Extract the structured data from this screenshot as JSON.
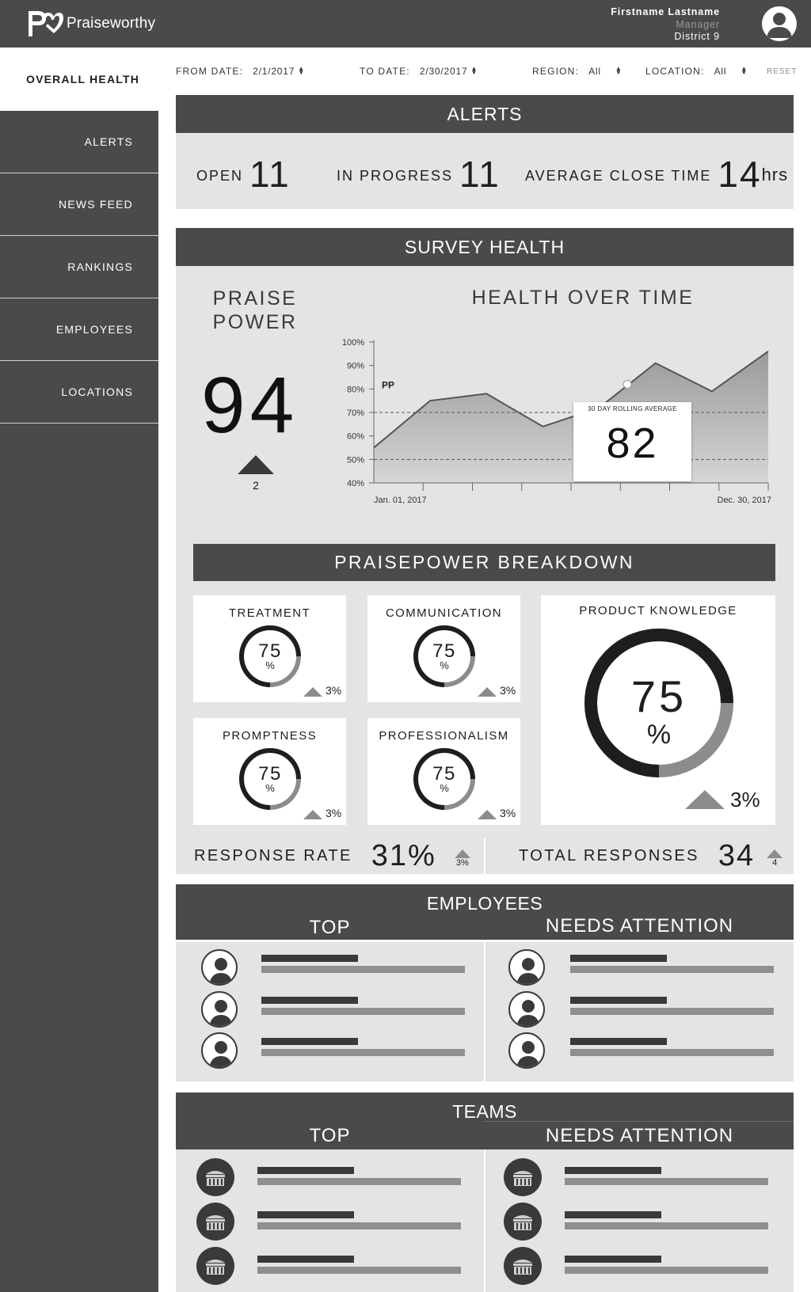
{
  "brand": {
    "name": "Praiseworthy",
    "logo_letters": "PR"
  },
  "user": {
    "name": "Firstname Lastname",
    "role": "Manager",
    "district": "District 9"
  },
  "sidebar": {
    "active": "OVERALL HEALTH",
    "items": [
      {
        "label": "ALERTS"
      },
      {
        "label": "NEWS FEED"
      },
      {
        "label": "RANKINGS"
      },
      {
        "label": "EMPLOYEES"
      },
      {
        "label": "LOCATIONS"
      }
    ]
  },
  "filters": {
    "from_label": "FROM DATE:",
    "from_value": "2/1/2017",
    "to_label": "TO DATE:",
    "to_value": "2/30/2017",
    "region_label": "REGION:",
    "region_value": "All",
    "location_label": "LOCATION:",
    "location_value": "All",
    "reset_label": "RESET"
  },
  "alerts": {
    "title": "ALERTS",
    "open_label": "OPEN",
    "open_value": "11",
    "progress_label": "IN PROGRESS",
    "progress_value": "11",
    "close_label": "AVERAGE CLOSE TIME",
    "close_value": "14",
    "close_unit": "hrs"
  },
  "survey": {
    "title": "SURVEY HEALTH",
    "praise_power_title_1": "PRAISE",
    "praise_power_title_2": "POWER",
    "praise_power_value": "94",
    "praise_power_delta": "2",
    "chart_title": "HEALTH OVER TIME",
    "tooltip_label": "30 DAY ROLLING AVERAGE",
    "tooltip_value": "82"
  },
  "chart_data": {
    "type": "area",
    "title": "HEALTH OVER TIME",
    "series": [
      {
        "name": "PP",
        "values": [
          55,
          75,
          78,
          64,
          72,
          91,
          79,
          96
        ]
      }
    ],
    "x_start_label": "Jan. 01, 2017",
    "x_end_label": "Dec. 30, 2017",
    "yticks": [
      "100%",
      "90%",
      "80%",
      "70%",
      "60%",
      "50%",
      "40%"
    ],
    "ylim": [
      40,
      100
    ],
    "reference_lines": [
      70,
      50
    ],
    "highlight": {
      "index": 4.5,
      "value": 82
    },
    "grid": false
  },
  "breakdown": {
    "title": "PRAISEPOWER BREAKDOWN",
    "items": [
      {
        "label": "TREATMENT",
        "value": "75",
        "unit": "%",
        "delta": "3%",
        "fraction": 0.75
      },
      {
        "label": "COMMUNICATION",
        "value": "75",
        "unit": "%",
        "delta": "3%",
        "fraction": 0.75
      },
      {
        "label": "PROMPTNESS",
        "value": "75",
        "unit": "%",
        "delta": "3%",
        "fraction": 0.75
      },
      {
        "label": "PROFESSIONALISM",
        "value": "75",
        "unit": "%",
        "delta": "3%",
        "fraction": 0.75
      },
      {
        "label": "PRODUCT KNOWLEDGE",
        "value": "75",
        "unit": "%",
        "delta": "3%",
        "fraction": 0.75
      }
    ]
  },
  "response": {
    "rate_label": "RESPONSE RATE",
    "rate_value": "31%",
    "rate_delta": "3%",
    "total_label": "TOTAL RESPONSES",
    "total_value": "34",
    "total_delta": "4"
  },
  "employees": {
    "title": "EMPLOYEES",
    "top_label": "TOP",
    "attention_label": "NEEDS ATTENTION"
  },
  "teams": {
    "title": "TEAMS",
    "top_label": "TOP",
    "attention_label": "NEEDS ATTENTION"
  },
  "colors": {
    "dark": "#4a4a4a",
    "panel": "#e4e4e6",
    "ring_track": "#8c8c8c",
    "ring_fill": "#1e1e1e"
  }
}
